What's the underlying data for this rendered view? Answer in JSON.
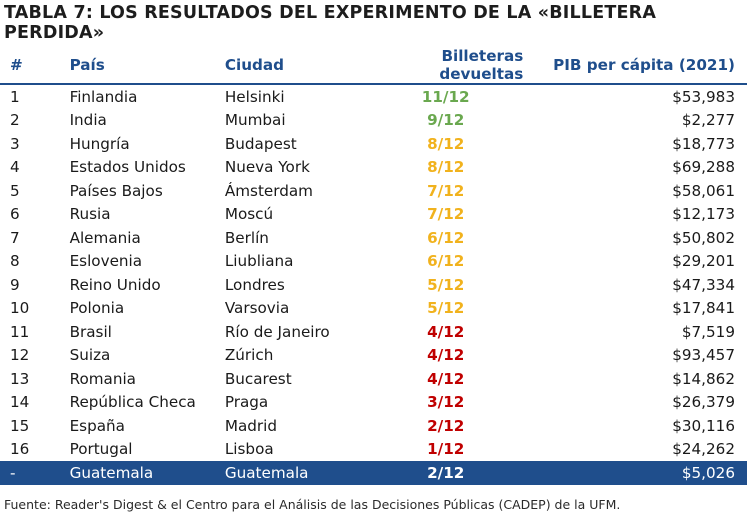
{
  "title": "TABLA 7: LOS RESULTADOS DEL EXPERIMENTO DE LA «BILLETERA PERDIDA»",
  "table": {
    "columns": [
      "#",
      "País",
      "Ciudad",
      "Billeteras devueltas",
      "PIB per cápita (2021)"
    ],
    "rows": [
      {
        "num": "1",
        "country": "Finlandia",
        "city": "Helsinki",
        "wallets": "11/12",
        "gdp": "$53,983",
        "color": "#6aa84f"
      },
      {
        "num": "2",
        "country": "India",
        "city": "Mumbai",
        "wallets": "9/12",
        "gdp": "$2,277",
        "color": "#6aa84f"
      },
      {
        "num": "3",
        "country": "Hungría",
        "city": "Budapest",
        "wallets": "8/12",
        "gdp": "$18,773",
        "color": "#f1b21d"
      },
      {
        "num": "4",
        "country": "Estados Unidos",
        "city": "Nueva York",
        "wallets": "8/12",
        "gdp": "$69,288",
        "color": "#f1b21d"
      },
      {
        "num": "5",
        "country": "Países Bajos",
        "city": "Ámsterdam",
        "wallets": "7/12",
        "gdp": "$58,061",
        "color": "#f1b21d"
      },
      {
        "num": "6",
        "country": "Rusia",
        "city": "Moscú",
        "wallets": "7/12",
        "gdp": "$12,173",
        "color": "#f1b21d"
      },
      {
        "num": "7",
        "country": "Alemania",
        "city": "Berlín",
        "wallets": "6/12",
        "gdp": "$50,802",
        "color": "#f1b21d"
      },
      {
        "num": "8",
        "country": "Eslovenia",
        "city": "Liubliana",
        "wallets": "6/12",
        "gdp": "$29,201",
        "color": "#f1b21d"
      },
      {
        "num": "9",
        "country": "Reino Unido",
        "city": "Londres",
        "wallets": "5/12",
        "gdp": "$47,334",
        "color": "#f1b21d"
      },
      {
        "num": "10",
        "country": "Polonia",
        "city": "Varsovia",
        "wallets": "5/12",
        "gdp": "$17,841",
        "color": "#f1b21d"
      },
      {
        "num": "11",
        "country": "Brasil",
        "city": "Río de Janeiro",
        "wallets": "4/12",
        "gdp": "$7,519",
        "color": "#c00000"
      },
      {
        "num": "12",
        "country": "Suiza",
        "city": "Zúrich",
        "wallets": "4/12",
        "gdp": "$93,457",
        "color": "#c00000"
      },
      {
        "num": "13",
        "country": "Romania",
        "city": "Bucarest",
        "wallets": "4/12",
        "gdp": "$14,862",
        "color": "#c00000"
      },
      {
        "num": "14",
        "country": "República Checa",
        "city": "Praga",
        "wallets": "3/12",
        "gdp": "$26,379",
        "color": "#c00000"
      },
      {
        "num": "15",
        "country": "España",
        "city": "Madrid",
        "wallets": "2/12",
        "gdp": "$30,116",
        "color": "#c00000"
      },
      {
        "num": "16",
        "country": "Portugal",
        "city": "Lisboa",
        "wallets": "1/12",
        "gdp": "$24,262",
        "color": "#c00000"
      }
    ],
    "highlight": {
      "num": "-",
      "country": "Guatemala",
      "city": "Guatemala",
      "wallets": "2/12",
      "gdp": "$5,026"
    }
  },
  "footer": "Fuente: Reader's Digest & el Centro para el Análisis de las Decisiones Públicas (CADEP) de la UFM.",
  "colors": {
    "header": "#1f4e8c",
    "highlight_bg": "#1f4e8c",
    "green": "#6aa84f",
    "yellow": "#f1b21d",
    "red": "#c00000"
  }
}
